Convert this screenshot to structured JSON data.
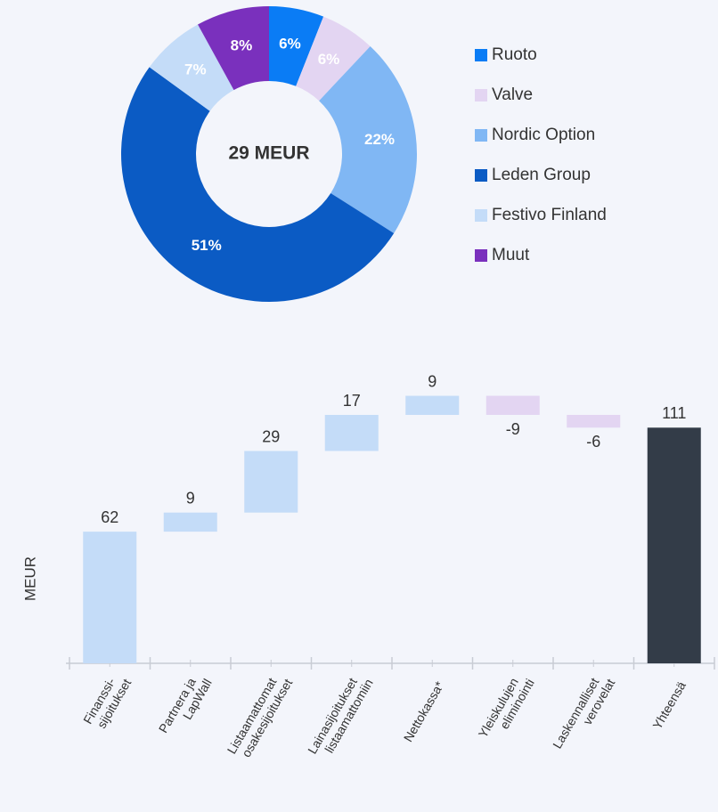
{
  "chart_data": [
    {
      "type": "donut",
      "center_label": "29 MEUR",
      "categories": [
        "Ruoto",
        "Valve",
        "Nordic Option",
        "Leden Group",
        "Festivo Finland",
        "Muut"
      ],
      "values": [
        6,
        6,
        22,
        51,
        7,
        8
      ],
      "value_labels": [
        "6%",
        "6%",
        "22%",
        "51%",
        "7%",
        "8%"
      ],
      "colors": [
        "#0a7cf5",
        "#e3d5f2",
        "#80b7f4",
        "#0b5bc4",
        "#c4dcf8",
        "#7a30bd"
      ],
      "legend": "right"
    },
    {
      "type": "waterfall",
      "ylabel": "MEUR",
      "categories": [
        "Finanssi-\nsijoitukset",
        "Partnera ja\nLapWall",
        "Listaamattomat\nosakesijoitukset",
        "Lainasijoitukset\nlistaamattomiin",
        "Nettokassa*",
        "Yleiskulujen\neliminointi",
        "Laskennalliset\nverovelat",
        "Yhteensä"
      ],
      "values": [
        62,
        9,
        29,
        17,
        9,
        -9,
        -6,
        111
      ],
      "measure": [
        "relative",
        "relative",
        "relative",
        "relative",
        "relative",
        "relative",
        "relative",
        "total"
      ],
      "colors": {
        "increase": "#c4dcf8",
        "decrease": "#e3d5f2",
        "total": "#333c48"
      },
      "ylim": [
        0,
        130
      ]
    }
  ]
}
